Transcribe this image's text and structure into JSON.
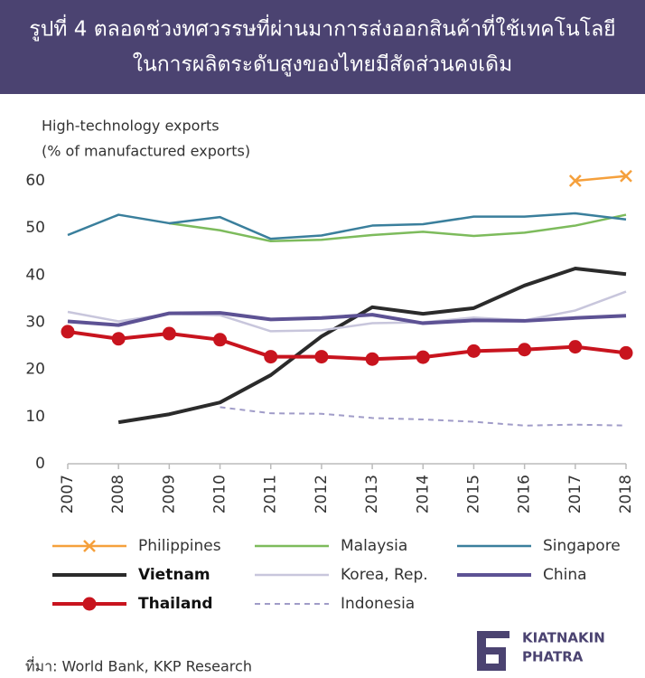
{
  "chart_data": {
    "type": "line",
    "title": [
      "รูปที่ 4 ตลอดช่วงทศวรรษที่ผ่านมาการส่งออกสินค้าที่ใช้เทคโนโลยี",
      "ในการผลิตระดับสูงของไทยมีสัดส่วนคงเดิม"
    ],
    "y_label": [
      "High-technology exports",
      "(% of manufactured exports)"
    ],
    "categories": [
      "2007",
      "2008",
      "2009",
      "2010",
      "2011",
      "2012",
      "2013",
      "2014",
      "2015",
      "2016",
      "2017",
      "2018"
    ],
    "ylim": [
      0,
      60
    ],
    "yticks": [
      0,
      10,
      20,
      30,
      40,
      50,
      60
    ],
    "series": [
      {
        "name": "Philippines",
        "color": "#f5a03c",
        "width": 2.5,
        "marker": "x",
        "values": [
          null,
          null,
          null,
          null,
          null,
          null,
          null,
          null,
          null,
          null,
          60.0,
          61.0
        ]
      },
      {
        "name": "Malaysia",
        "color": "#7dbb5c",
        "width": 2.5,
        "values": [
          null,
          null,
          51.0,
          49.5,
          47.2,
          47.5,
          48.5,
          49.2,
          48.3,
          49.0,
          50.5,
          52.8
        ]
      },
      {
        "name": "Singapore",
        "color": "#3a7f9c",
        "width": 2.5,
        "values": [
          48.5,
          52.8,
          51.0,
          52.3,
          47.7,
          48.4,
          50.5,
          50.8,
          52.4,
          52.4,
          53.1,
          51.8
        ]
      },
      {
        "name": "Vietnam",
        "color": "#2b2b2b",
        "width": 4,
        "bold": true,
        "values": [
          null,
          8.8,
          10.5,
          13.0,
          18.8,
          27.0,
          33.2,
          31.8,
          33.0,
          37.8,
          41.4,
          40.2
        ]
      },
      {
        "name": "Korea, Rep.",
        "color": "#c8c6dc",
        "width": 2.5,
        "values": [
          32.2,
          30.2,
          31.8,
          31.5,
          28.1,
          28.3,
          29.8,
          30.0,
          31.0,
          30.4,
          32.5,
          36.5
        ]
      },
      {
        "name": "China",
        "color": "#5d5294",
        "width": 4,
        "values": [
          30.2,
          29.4,
          31.9,
          32.0,
          30.6,
          30.9,
          31.6,
          29.8,
          30.4,
          30.3,
          30.9,
          31.4
        ]
      },
      {
        "name": "Thailand",
        "color": "#c8141e",
        "width": 4,
        "bold": true,
        "marker": "circle",
        "values": [
          28.0,
          26.5,
          27.6,
          26.3,
          22.7,
          22.7,
          22.2,
          22.6,
          23.9,
          24.2,
          24.8,
          23.5
        ]
      },
      {
        "name": "Indonesia",
        "color": "#a09cc8",
        "width": 2,
        "dashed": true,
        "values": [
          null,
          null,
          null,
          12.0,
          10.7,
          10.6,
          9.7,
          9.4,
          8.9,
          8.1,
          8.3,
          8.1
        ]
      }
    ],
    "source": "ที่มา: World Bank, KKP Research",
    "logo": [
      "KIATNAKIN",
      "PHATRA"
    ]
  }
}
